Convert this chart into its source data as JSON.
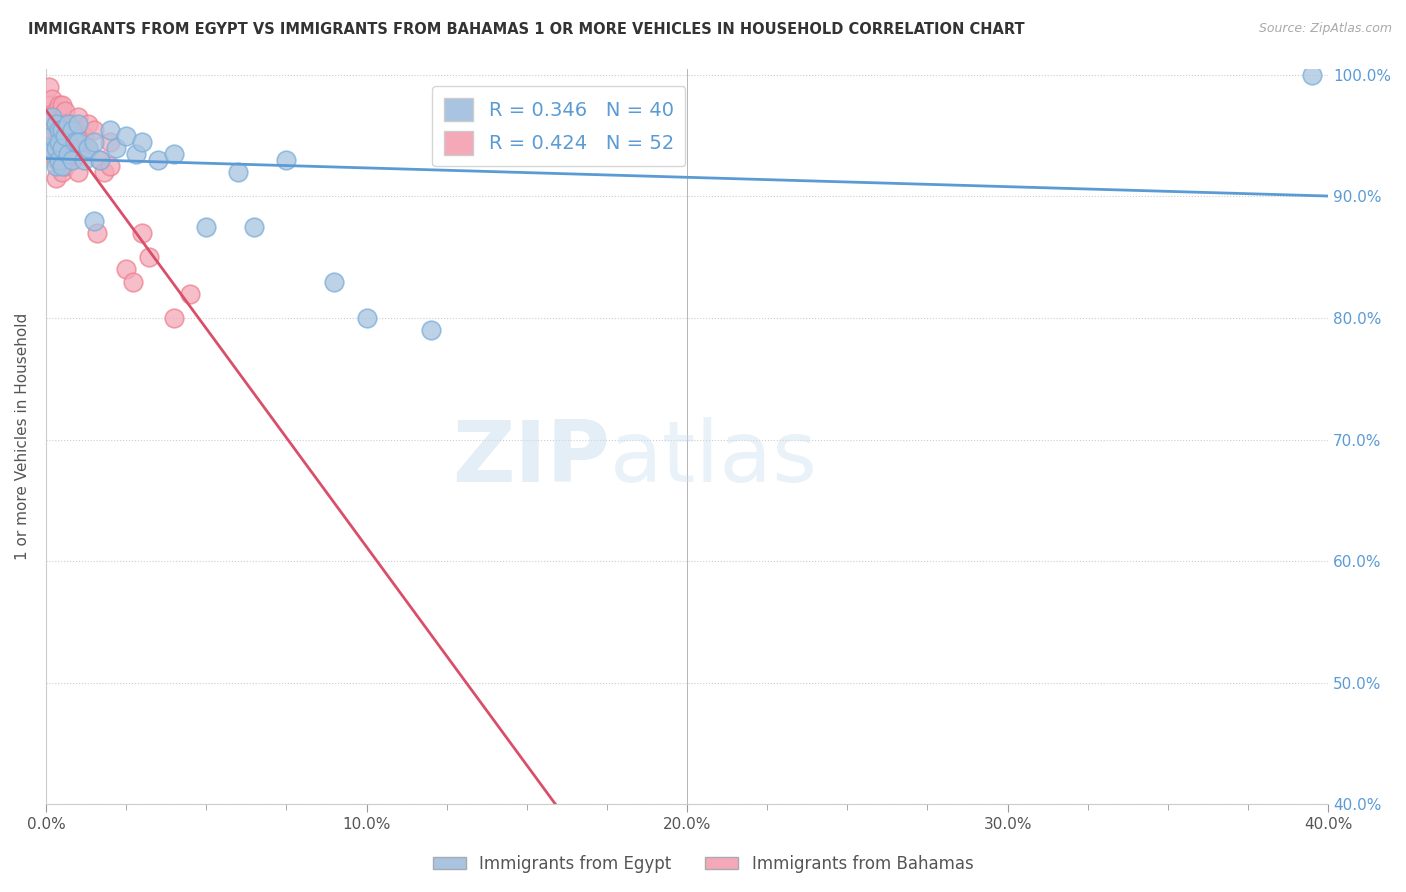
{
  "title": "IMMIGRANTS FROM EGYPT VS IMMIGRANTS FROM BAHAMAS 1 OR MORE VEHICLES IN HOUSEHOLD CORRELATION CHART",
  "source": "Source: ZipAtlas.com",
  "ylabel": "1 or more Vehicles in Household",
  "xlabel": "",
  "legend_bottom": [
    "Immigrants from Egypt",
    "Immigrants from Bahamas"
  ],
  "egypt_color": "#a8c4e0",
  "bahamas_color": "#f4a8b8",
  "egypt_edge_color": "#7aafda",
  "bahamas_edge_color": "#f08090",
  "egypt_R": 0.346,
  "egypt_N": 40,
  "bahamas_R": 0.424,
  "bahamas_N": 52,
  "trend_color_egypt": "#5b9bd5",
  "trend_color_bahamas": "#d94f6a",
  "xmin": 0.0,
  "xmax": 0.4,
  "ymin": 0.4,
  "ymax": 1.005,
  "watermark_zip": "ZIP",
  "watermark_atlas": "atlas",
  "egypt_x": [
    0.001,
    0.002,
    0.002,
    0.003,
    0.003,
    0.003,
    0.004,
    0.004,
    0.004,
    0.005,
    0.005,
    0.005,
    0.006,
    0.007,
    0.007,
    0.008,
    0.008,
    0.009,
    0.01,
    0.01,
    0.012,
    0.013,
    0.015,
    0.017,
    0.02,
    0.022,
    0.025,
    0.028,
    0.03,
    0.035,
    0.04,
    0.05,
    0.06,
    0.065,
    0.075,
    0.09,
    0.1,
    0.12,
    0.015,
    0.395
  ],
  "egypt_y": [
    0.94,
    0.95,
    0.965,
    0.96,
    0.94,
    0.925,
    0.955,
    0.945,
    0.93,
    0.955,
    0.94,
    0.925,
    0.95,
    0.96,
    0.935,
    0.955,
    0.93,
    0.945,
    0.96,
    0.945,
    0.93,
    0.94,
    0.945,
    0.93,
    0.955,
    0.94,
    0.95,
    0.935,
    0.945,
    0.93,
    0.935,
    0.875,
    0.92,
    0.875,
    0.93,
    0.83,
    0.8,
    0.79,
    0.88,
    1.0
  ],
  "bahamas_x": [
    0.001,
    0.001,
    0.001,
    0.002,
    0.002,
    0.002,
    0.002,
    0.003,
    0.003,
    0.003,
    0.003,
    0.003,
    0.004,
    0.004,
    0.004,
    0.004,
    0.005,
    0.005,
    0.005,
    0.005,
    0.005,
    0.006,
    0.006,
    0.006,
    0.006,
    0.007,
    0.007,
    0.007,
    0.008,
    0.008,
    0.008,
    0.009,
    0.009,
    0.01,
    0.01,
    0.01,
    0.01,
    0.012,
    0.013,
    0.013,
    0.015,
    0.016,
    0.017,
    0.018,
    0.02,
    0.02,
    0.025,
    0.027,
    0.03,
    0.032,
    0.04,
    0.045
  ],
  "bahamas_y": [
    0.96,
    0.975,
    0.99,
    0.965,
    0.98,
    0.955,
    0.94,
    0.97,
    0.96,
    0.945,
    0.93,
    0.915,
    0.975,
    0.96,
    0.945,
    0.93,
    0.975,
    0.96,
    0.95,
    0.935,
    0.92,
    0.97,
    0.955,
    0.94,
    0.925,
    0.96,
    0.945,
    0.93,
    0.96,
    0.945,
    0.93,
    0.955,
    0.94,
    0.965,
    0.95,
    0.935,
    0.92,
    0.95,
    0.96,
    0.94,
    0.955,
    0.87,
    0.93,
    0.92,
    0.945,
    0.925,
    0.84,
    0.83,
    0.87,
    0.85,
    0.8,
    0.82
  ]
}
